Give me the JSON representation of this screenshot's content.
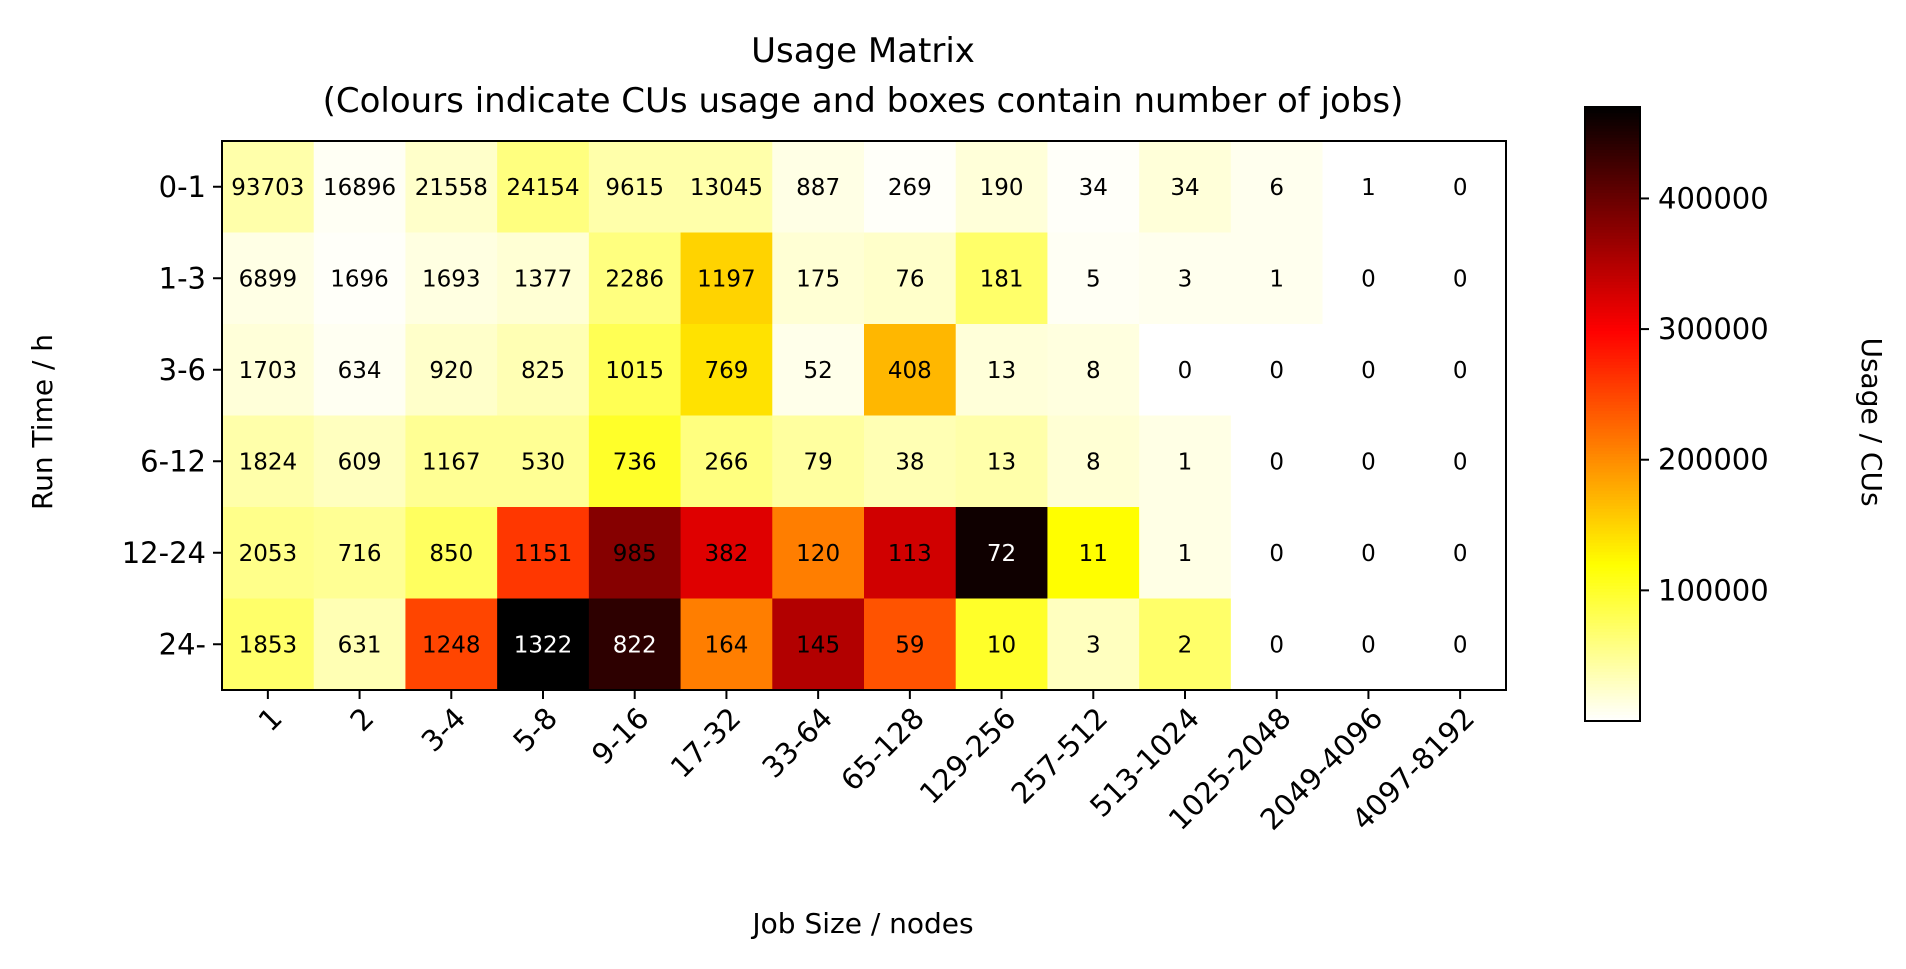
{
  "chart_data": {
    "type": "heatmap",
    "title": "Usage Matrix",
    "subtitle": "(Colours indicate CUs usage and boxes contain number of jobs)",
    "xlabel": "Job Size / nodes",
    "ylabel": "Run Time / h",
    "x_categories": [
      "1",
      "2",
      "3-4",
      "5-8",
      "9-16",
      "17-32",
      "33-64",
      "65-128",
      "129-256",
      "257-512",
      "513-1024",
      "1025-2048",
      "2049-4096",
      "4097-8192"
    ],
    "y_categories": [
      "0-1",
      "1-3",
      "3-6",
      "6-12",
      "12-24",
      "24-"
    ],
    "job_counts": [
      [
        "93703",
        "16896",
        "21558",
        "24154",
        "9615",
        "13045",
        "887",
        "269",
        "190",
        "34",
        "34",
        "6",
        "1",
        "0"
      ],
      [
        "6899",
        "1696",
        "1693",
        "1377",
        "2286",
        "1197",
        "175",
        "76",
        "181",
        "5",
        "3",
        "1",
        "0",
        "0"
      ],
      [
        "1703",
        "634",
        "920",
        "825",
        "1015",
        "769",
        "52",
        "408",
        "13",
        "8",
        "0",
        "0",
        "0",
        "0"
      ],
      [
        "1824",
        "609",
        "1167",
        "530",
        "736",
        "266",
        "79",
        "38",
        "13",
        "8",
        "1",
        "0",
        "0",
        "0"
      ],
      [
        "2053",
        "716",
        "850",
        "1151",
        "985",
        "382",
        "120",
        "113",
        "72",
        "11",
        "1",
        "0",
        "0",
        "0"
      ],
      [
        "1853",
        "631",
        "1248",
        "1322",
        "822",
        "164",
        "145",
        "59",
        "10",
        "3",
        "2",
        "0",
        "0",
        "0"
      ]
    ],
    "usage_cus": [
      [
        40000,
        5000,
        25000,
        60000,
        40000,
        40000,
        12000,
        3000,
        18000,
        3000,
        18000,
        8000,
        0,
        0
      ],
      [
        12000,
        3000,
        14000,
        20000,
        60000,
        150000,
        20000,
        25000,
        70000,
        5000,
        8000,
        8000,
        0,
        0
      ],
      [
        18000,
        6000,
        25000,
        35000,
        80000,
        140000,
        10000,
        170000,
        18000,
        15000,
        0,
        0,
        0,
        0
      ],
      [
        40000,
        30000,
        50000,
        50000,
        100000,
        60000,
        45000,
        35000,
        40000,
        20000,
        12000,
        0,
        0,
        0
      ],
      [
        55000,
        50000,
        75000,
        260000,
        380000,
        320000,
        210000,
        330000,
        460000,
        120000,
        12000,
        0,
        0,
        0
      ],
      [
        70000,
        35000,
        250000,
        470000,
        440000,
        210000,
        350000,
        240000,
        100000,
        30000,
        70000,
        0,
        0,
        0
      ]
    ],
    "colorbar": {
      "label": "Usage / CUs",
      "range": [
        0,
        470000
      ],
      "ticks": [
        100000,
        200000,
        300000,
        400000
      ],
      "tick_labels": [
        "100000",
        "200000",
        "300000",
        "400000"
      ],
      "colormap": "hot_r"
    }
  }
}
